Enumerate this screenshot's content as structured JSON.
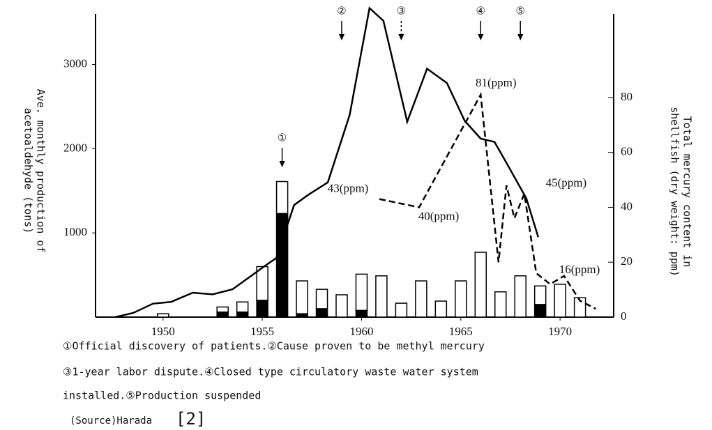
{
  "chart_data": {
    "type": "bar_line",
    "y_label": [
      "Ave. monthly production of",
      "acetoaldehyde (tons)"
    ],
    "y2_label": [
      "Total mercury content in",
      "shellfish (dry weight: ppm)"
    ],
    "xlim": [
      1946.6,
      1972.7
    ],
    "xticks": [
      1950,
      1955,
      1960,
      1965,
      1970
    ],
    "ylim": [
      0,
      3700
    ],
    "yticks": [
      1000,
      2000,
      3000
    ],
    "y2lim": [
      0,
      113.5
    ],
    "y2ticks": [
      0,
      20,
      40,
      60,
      80
    ],
    "bars": {
      "x": [
        1950,
        1953,
        1954,
        1955,
        1956,
        1957,
        1958,
        1959,
        1960,
        1961,
        1962,
        1963,
        1964,
        1965,
        1966,
        1967,
        1968,
        1969,
        1970,
        1971
      ],
      "series": [
        {
          "color": "#000000",
          "values": [
            0,
            60,
            60,
            200,
            1230,
            40,
            100,
            0,
            80,
            0,
            0,
            0,
            0,
            0,
            0,
            0,
            0,
            150,
            0,
            0
          ]
        },
        {
          "color": "#ffffff",
          "values": [
            40,
            60,
            120,
            400,
            380,
            390,
            230,
            265,
            430,
            490,
            165,
            430,
            190,
            430,
            770,
            300,
            490,
            220,
            390,
            230
          ]
        }
      ]
    },
    "lines": [
      {
        "color": "#000000",
        "dash": false,
        "x": [
          1947.6,
          1948.5,
          1949.5,
          1950.4,
          1951.5,
          1952.5,
          1953.5,
          1954.5,
          1955.2,
          1955.7,
          1956.6,
          1957.3,
          1958.3,
          1959.4,
          1960.4,
          1961.1,
          1962.3,
          1963.3,
          1964.3,
          1965.2,
          1966.0,
          1966.7,
          1967.4,
          1968.3,
          1968.9
        ],
        "values": [
          0,
          50,
          160,
          180,
          290,
          270,
          330,
          500,
          620,
          700,
          1330,
          1450,
          1600,
          2400,
          3670,
          3520,
          2320,
          2950,
          2780,
          2330,
          2120,
          2080,
          1790,
          1410,
          950
        ]
      },
      {
        "color": "#000000",
        "dash": true,
        "axis": "y2",
        "x": [
          1960.9,
          1962.9,
          1966.0,
          1966.9,
          1967.3,
          1967.7,
          1968.2,
          1968.8,
          1969.5,
          1970.2,
          1971.0,
          1971.8
        ],
        "values": [
          43,
          40,
          81,
          20,
          48,
          36,
          45,
          16,
          12,
          15,
          6,
          3
        ],
        "value_labels": [
          "43(ppm)",
          "40(ppm)",
          "81(ppm)",
          null,
          null,
          null,
          "45(ppm)",
          "16(ppm)",
          null,
          null,
          null,
          null
        ]
      }
    ],
    "events": [
      {
        "label": "①",
        "x": 1956
      },
      {
        "label": "②",
        "x": 1959
      },
      {
        "label": "③",
        "x": 1962
      },
      {
        "label": "④",
        "x": 1966
      },
      {
        "label": "⑤",
        "x": 1968
      }
    ]
  },
  "caption": {
    "notes": [
      "①Official discovery of patients.②Cause proven to be methyl mercury",
      "③1-year labor dispute.④Closed type circulatory waste water system",
      "installed.⑤Production suspended"
    ],
    "source": "(Source)Harada",
    "reference": "[2]"
  }
}
